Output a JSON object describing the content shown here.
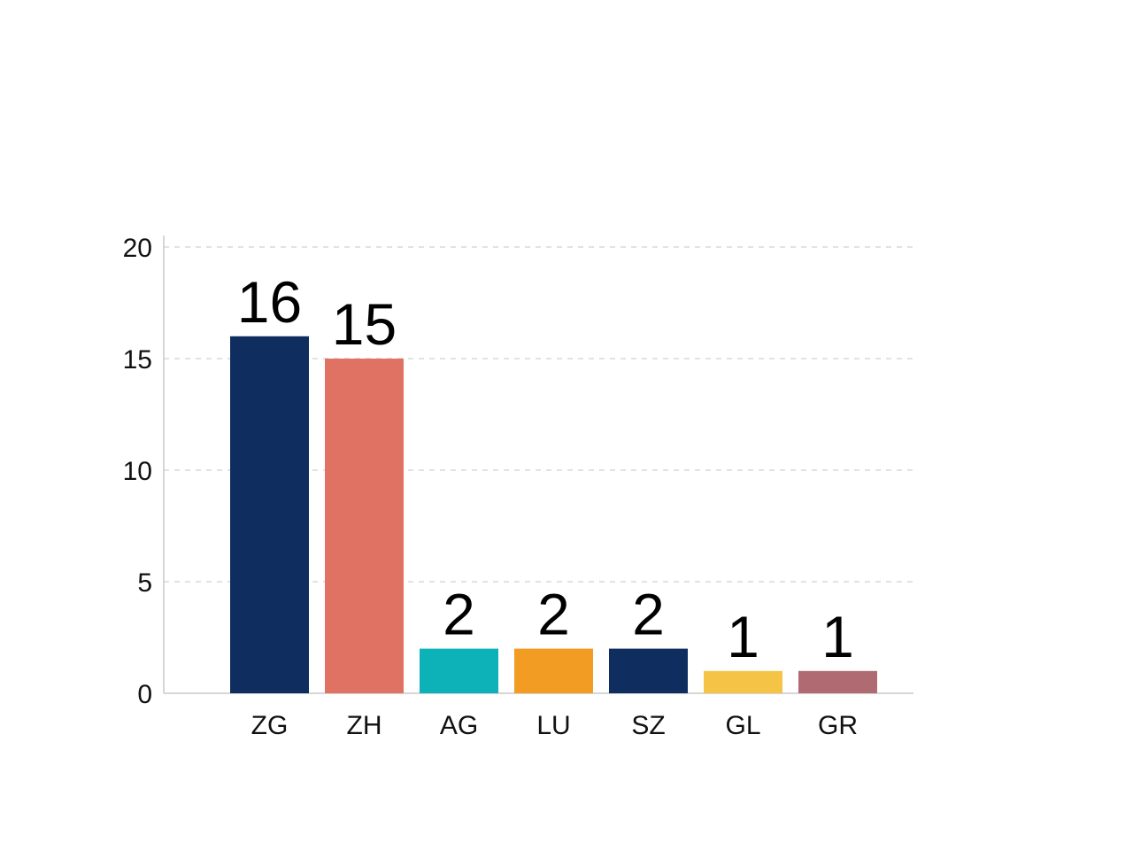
{
  "chart_data": {
    "type": "bar",
    "categories": [
      "ZG",
      "ZH",
      "AG",
      "LU",
      "SZ",
      "GL",
      "GR"
    ],
    "values": [
      16,
      15,
      2,
      2,
      2,
      1,
      1
    ],
    "data_labels": [
      "16",
      "15",
      "2",
      "2",
      "2",
      "1",
      "1"
    ],
    "colors": [
      "#0f2d5e",
      "#e07264",
      "#0db1b8",
      "#f39c24",
      "#0f2d5e",
      "#f5c447",
      "#b06a72"
    ],
    "title": "",
    "xlabel": "",
    "ylabel": "",
    "ylim": [
      0,
      20
    ],
    "yticks": [
      0,
      5,
      10,
      15,
      20
    ],
    "ytick_labels": [
      "0",
      "5",
      "10",
      "15",
      "20"
    ],
    "grid": true,
    "legend": "none"
  }
}
